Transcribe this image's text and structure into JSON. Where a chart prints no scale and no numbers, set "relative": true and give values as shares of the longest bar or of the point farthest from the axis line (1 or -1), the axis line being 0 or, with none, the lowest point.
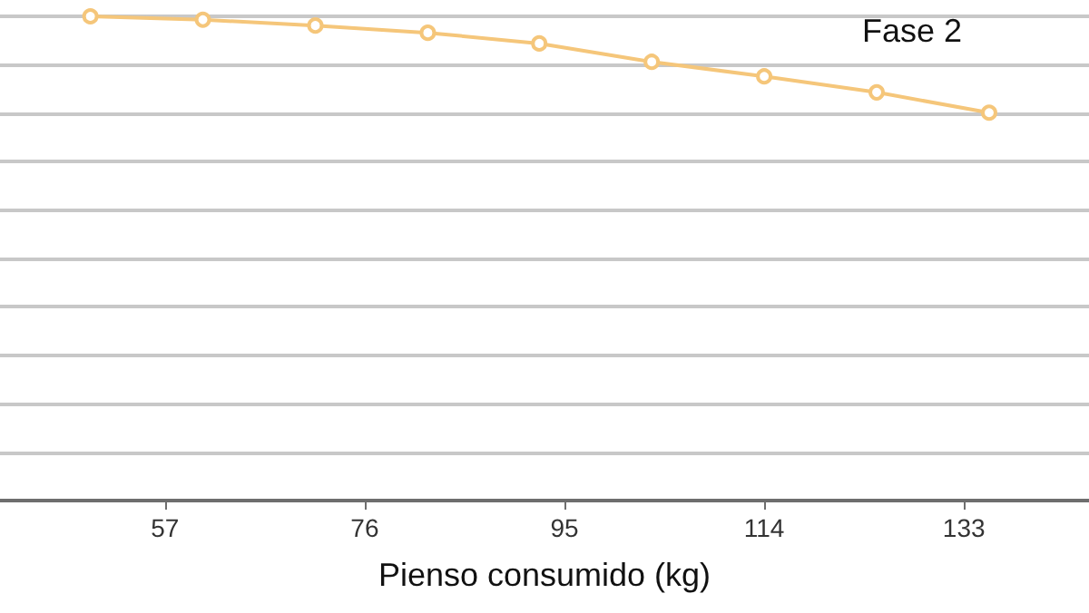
{
  "chart_data": {
    "type": "line",
    "xlabel": "Pienso consumido (kg)",
    "annotations": [
      "Fase 2"
    ],
    "relative": true,
    "x": [
      49.9,
      60.6,
      71.3,
      82.0,
      92.6,
      103.3,
      114.0,
      124.7,
      135.4
    ],
    "series": [
      {
        "color": "#f5c67a",
        "values": [
          1,
          0.993,
          0.981,
          0.966,
          0.944,
          0.906,
          0.876,
          0.843,
          0.801
        ]
      }
    ],
    "xlim": [
      41.3,
      144.9
    ],
    "xticks": [
      57,
      76,
      95,
      114,
      133
    ],
    "grid": "y",
    "marker": "circle",
    "line_style": "solid"
  }
}
